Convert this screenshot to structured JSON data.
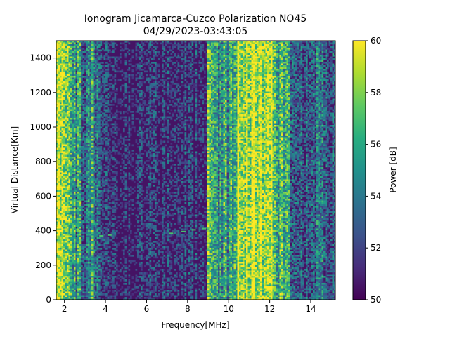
{
  "chart_data": {
    "type": "heatmap",
    "title_line1": "Ionogram Jicamarca-Cuzco Polarization NO45",
    "title_line2": "04/29/2023-03:43:05",
    "xlabel": "Frequency[MHz]",
    "ylabel": "Virtual Distance[Km]",
    "xlim": [
      1.6,
      15.2
    ],
    "ylim": [
      0,
      1500
    ],
    "xticks": [
      2,
      4,
      6,
      8,
      10,
      12,
      14
    ],
    "yticks": [
      0,
      200,
      400,
      600,
      800,
      1000,
      1200,
      1400
    ],
    "colorbar": {
      "label": "Power [dB]",
      "range": [
        50,
        60
      ],
      "ticks": [
        50,
        52,
        54,
        56,
        58,
        60
      ],
      "colormap": "viridis"
    },
    "band_profile": [
      {
        "f_start": 1.6,
        "f_end": 1.9,
        "power_db": 58.5
      },
      {
        "f_start": 1.9,
        "f_end": 2.4,
        "power_db": 56.5
      },
      {
        "f_start": 2.4,
        "f_end": 2.8,
        "power_db": 55.0
      },
      {
        "f_start": 2.8,
        "f_end": 3.1,
        "power_db": 53.0
      },
      {
        "f_start": 3.1,
        "f_end": 3.5,
        "power_db": 55.5
      },
      {
        "f_start": 3.5,
        "f_end": 4.0,
        "power_db": 52.5
      },
      {
        "f_start": 4.0,
        "f_end": 9.0,
        "power_db": 51.0
      },
      {
        "f_start": 9.0,
        "f_end": 9.35,
        "power_db": 57.5
      },
      {
        "f_start": 9.35,
        "f_end": 10.4,
        "power_db": 55.5
      },
      {
        "f_start": 10.4,
        "f_end": 11.6,
        "power_db": 59.5
      },
      {
        "f_start": 11.6,
        "f_end": 12.2,
        "power_db": 59.0
      },
      {
        "f_start": 12.2,
        "f_end": 13.0,
        "power_db": 56.0
      },
      {
        "f_start": 13.0,
        "f_end": 15.2,
        "power_db": 53.0
      }
    ],
    "trace": [
      {
        "f": 3.8,
        "d": 370
      },
      {
        "f": 4.2,
        "d": 375
      },
      {
        "f": 7.2,
        "d": 385
      },
      {
        "f": 7.8,
        "d": 395
      },
      {
        "f": 8.3,
        "d": 405
      },
      {
        "f": 8.8,
        "d": 412
      },
      {
        "f": 9.2,
        "d": 420
      }
    ]
  }
}
